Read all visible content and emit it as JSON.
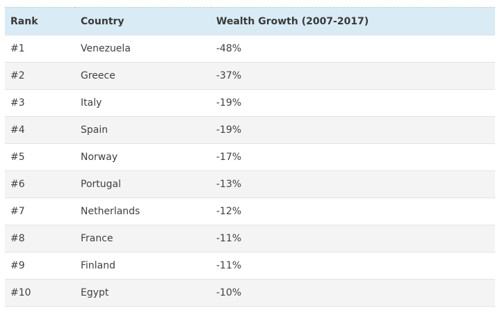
{
  "table": {
    "headers": [
      "Rank",
      "Country",
      "Wealth Growth (2007-2017)"
    ],
    "rows": [
      [
        "#1",
        "Venezuela",
        "-48%"
      ],
      [
        "#2",
        "Greece",
        "-37%"
      ],
      [
        "#3",
        "Italy",
        "-19%"
      ],
      [
        "#4",
        "Spain",
        "-19%"
      ],
      [
        "#5",
        "Norway",
        "-17%"
      ],
      [
        "#6",
        "Portugal",
        "-13%"
      ],
      [
        "#7",
        "Netherlands",
        "-12%"
      ],
      [
        "#8",
        "France",
        "-11%"
      ],
      [
        "#9",
        "Finland",
        "-11%"
      ],
      [
        "#10",
        "Egypt",
        "-10%"
      ]
    ]
  },
  "colors": {
    "header_bg": "#d9ebf5",
    "stripe_bg": "#f4f4f4",
    "text": "#3f3f3f"
  }
}
